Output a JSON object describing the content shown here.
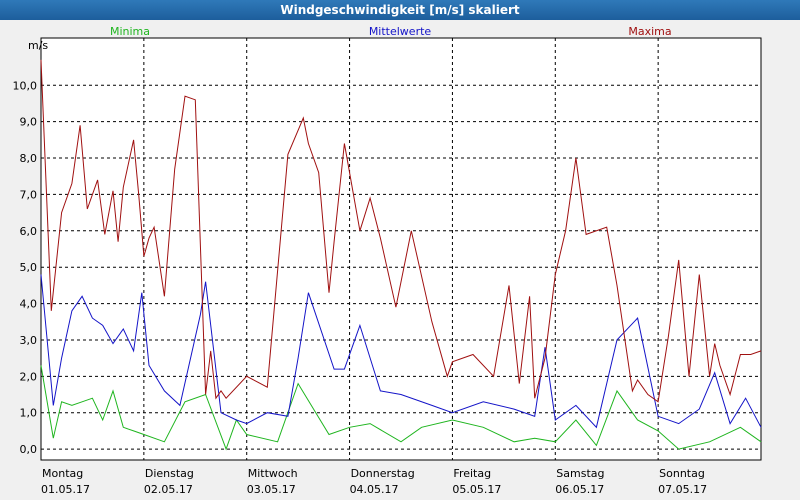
{
  "window": {
    "title": "Windgeschwindigkeit [m/s] skaliert"
  },
  "chart_data": {
    "type": "line",
    "title": "Windgeschwindigkeit [m/s] skaliert",
    "ylabel": "m/s",
    "ylim": [
      -0.3,
      11.3
    ],
    "yticks": [
      "0,0",
      "1,0",
      "2,0",
      "3,0",
      "4,0",
      "5,0",
      "6,0",
      "7,0",
      "8,0",
      "9,0",
      "10,0"
    ],
    "grid": true,
    "legend": "top",
    "x_days": [
      {
        "day": "Montag",
        "date": "01.05.17"
      },
      {
        "day": "Dienstag",
        "date": "02.05.17"
      },
      {
        "day": "Mittwoch",
        "date": "03.05.17"
      },
      {
        "day": "Donnerstag",
        "date": "04.05.17"
      },
      {
        "day": "Freitag",
        "date": "05.05.17"
      },
      {
        "day": "Samstag",
        "date": "06.05.17"
      },
      {
        "day": "Sonntag",
        "date": "07.05.17"
      }
    ],
    "x_unit": "days since 01.05.17 00:00",
    "series": [
      {
        "name": "Minima",
        "color": "#1fb51f",
        "x": [
          0,
          0.12,
          0.2,
          0.3,
          0.4,
          0.5,
          0.6,
          0.7,
          0.8,
          0.9,
          1,
          1.2,
          1.4,
          1.6,
          1.8,
          1.9,
          2,
          2.3,
          2.5,
          2.8,
          3,
          3.2,
          3.5,
          3.7,
          4,
          4.3,
          4.6,
          4.8,
          5,
          5.2,
          5.4,
          5.6,
          5.8,
          6,
          6.2,
          6.5,
          6.8,
          7
        ],
        "values": [
          2.3,
          0.3,
          1.3,
          1.2,
          1.3,
          1.4,
          0.8,
          1.6,
          0.6,
          0.5,
          0.4,
          0.2,
          1.3,
          1.5,
          0,
          0.8,
          0.4,
          0.2,
          1.8,
          0.4,
          0.6,
          0.7,
          0.2,
          0.6,
          0.8,
          0.6,
          0.2,
          0.3,
          0.2,
          0.8,
          0.1,
          1.6,
          0.8,
          0.5,
          0,
          0.2,
          0.6,
          0.2
        ]
      },
      {
        "name": "Mittelwerte",
        "color": "#1414c8",
        "x": [
          0,
          0.12,
          0.2,
          0.3,
          0.4,
          0.5,
          0.6,
          0.7,
          0.8,
          0.9,
          0.98,
          1.05,
          1.2,
          1.35,
          1.55,
          1.6,
          1.75,
          1.9,
          2,
          2.2,
          2.4,
          2.5,
          2.6,
          2.85,
          2.95,
          3.1,
          3.3,
          3.5,
          3.8,
          4,
          4.3,
          4.6,
          4.8,
          4.9,
          5,
          5.2,
          5.4,
          5.5,
          5.6,
          5.8,
          6,
          6.2,
          6.4,
          6.55,
          6.7,
          6.85,
          7
        ],
        "values": [
          4.8,
          1.2,
          2.5,
          3.8,
          4.2,
          3.6,
          3.4,
          2.9,
          3.3,
          2.7,
          4.3,
          2.3,
          1.6,
          1.2,
          3.7,
          4.6,
          1.0,
          0.8,
          0.7,
          1.0,
          0.9,
          2.5,
          4.3,
          2.2,
          2.2,
          3.4,
          1.6,
          1.5,
          1.2,
          1.0,
          1.3,
          1.1,
          0.9,
          2.8,
          0.8,
          1.2,
          0.6,
          1.8,
          3.0,
          3.6,
          0.9,
          0.7,
          1.1,
          2.1,
          0.7,
          1.4,
          0.6
        ]
      },
      {
        "name": "Maxima",
        "color": "#a01010",
        "x": [
          0,
          0.1,
          0.2,
          0.3,
          0.38,
          0.45,
          0.55,
          0.62,
          0.7,
          0.75,
          0.8,
          0.9,
          0.95,
          1.0,
          1.05,
          1.1,
          1.2,
          1.3,
          1.4,
          1.5,
          1.6,
          1.65,
          1.7,
          1.75,
          1.8,
          2.0,
          2.2,
          2.4,
          2.55,
          2.6,
          2.7,
          2.8,
          2.85,
          2.95,
          3.1,
          3.2,
          3.3,
          3.45,
          3.6,
          3.8,
          3.95,
          4.0,
          4.2,
          4.4,
          4.55,
          4.65,
          4.75,
          4.8,
          4.9,
          5.0,
          5.1,
          5.2,
          5.3,
          5.5,
          5.6,
          5.75,
          5.8,
          5.9,
          6.0,
          6.1,
          6.2,
          6.3,
          6.4,
          6.5,
          6.55,
          6.6,
          6.7,
          6.8,
          6.9,
          7.0
        ],
        "values": [
          10.7,
          3.8,
          6.5,
          7.3,
          8.9,
          6.6,
          7.4,
          5.9,
          7.1,
          5.7,
          7.2,
          8.5,
          7.0,
          5.3,
          5.8,
          6.1,
          4.2,
          7.7,
          9.7,
          9.6,
          1.5,
          2.7,
          1.4,
          1.6,
          1.4,
          2.0,
          1.7,
          8.1,
          9.1,
          8.4,
          7.6,
          4.3,
          5.7,
          8.4,
          6.0,
          6.9,
          5.8,
          3.9,
          6.0,
          3.5,
          2.0,
          2.4,
          2.6,
          2.0,
          4.5,
          1.8,
          4.2,
          1.4,
          2.5,
          4.8,
          6.0,
          8.0,
          5.9,
          6.1,
          4.5,
          1.6,
          1.9,
          1.5,
          1.3,
          3.1,
          5.2,
          2.0,
          4.8,
          2.0,
          2.9,
          2.3,
          1.5,
          2.6,
          2.6,
          2.7
        ]
      }
    ]
  }
}
